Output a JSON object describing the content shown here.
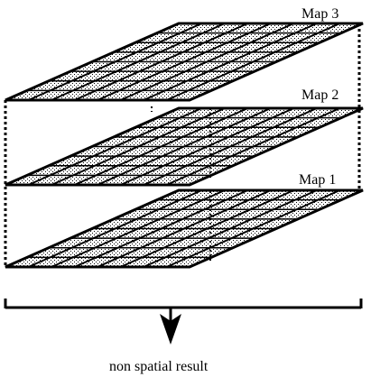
{
  "diagram": {
    "layers": [
      {
        "id": "map-1",
        "label": "Map 1"
      },
      {
        "id": "map-2",
        "label": "Map 2"
      },
      {
        "id": "map-3",
        "label": "Map 3"
      }
    ],
    "result_label": "non spatial result"
  }
}
